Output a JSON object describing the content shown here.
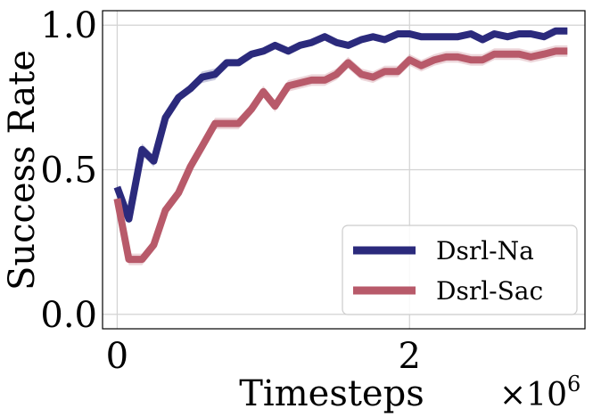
{
  "chart_data": {
    "type": "line",
    "xlabel": "Timesteps",
    "x_multiplier": "×10",
    "x_multiplier_exp": "6",
    "ylabel": "Success Rate",
    "xlim": [
      -0.1,
      3.2
    ],
    "ylim": [
      -0.05,
      1.05
    ],
    "x_ticks": [
      0,
      2
    ],
    "x_tick_labels": [
      "0",
      "2"
    ],
    "y_ticks": [
      0.0,
      0.5,
      1.0
    ],
    "y_tick_labels": [
      "0.0",
      "0.5",
      "1.0"
    ],
    "grid": true,
    "legend_position": "lower-right",
    "x": [
      0.0,
      0.08,
      0.17,
      0.25,
      0.33,
      0.42,
      0.5,
      0.58,
      0.67,
      0.75,
      0.83,
      0.92,
      1.0,
      1.08,
      1.17,
      1.25,
      1.33,
      1.42,
      1.5,
      1.58,
      1.67,
      1.75,
      1.83,
      1.92,
      2.0,
      2.08,
      2.17,
      2.25,
      2.33,
      2.42,
      2.5,
      2.58,
      2.67,
      2.75,
      2.83,
      2.92,
      3.0,
      3.08
    ],
    "series": [
      {
        "name": "Dsrl-Na",
        "color": "#2b2a7c",
        "values": [
          0.44,
          0.33,
          0.57,
          0.53,
          0.68,
          0.75,
          0.78,
          0.82,
          0.83,
          0.87,
          0.87,
          0.9,
          0.91,
          0.93,
          0.91,
          0.93,
          0.94,
          0.96,
          0.94,
          0.93,
          0.95,
          0.96,
          0.95,
          0.97,
          0.97,
          0.96,
          0.96,
          0.96,
          0.96,
          0.97,
          0.95,
          0.97,
          0.96,
          0.97,
          0.97,
          0.96,
          0.98,
          0.98
        ],
        "band": [
          0.01,
          0.01,
          0.02,
          0.02,
          0.02,
          0.01,
          0.01,
          0.02,
          0.02,
          0.01,
          0.01,
          0.01,
          0.01,
          0.01,
          0.01,
          0.01,
          0.01,
          0.01,
          0.01,
          0.01,
          0.01,
          0.01,
          0.01,
          0.01,
          0.01,
          0.01,
          0.01,
          0.01,
          0.01,
          0.01,
          0.01,
          0.01,
          0.01,
          0.01,
          0.01,
          0.01,
          0.01,
          0.01
        ]
      },
      {
        "name": "Dsrl-Sac",
        "color": "#b85a6a",
        "values": [
          0.4,
          0.19,
          0.19,
          0.24,
          0.36,
          0.42,
          0.51,
          0.58,
          0.66,
          0.66,
          0.66,
          0.71,
          0.77,
          0.72,
          0.79,
          0.8,
          0.81,
          0.81,
          0.83,
          0.87,
          0.83,
          0.82,
          0.84,
          0.84,
          0.88,
          0.86,
          0.88,
          0.89,
          0.89,
          0.88,
          0.88,
          0.9,
          0.9,
          0.9,
          0.89,
          0.9,
          0.91,
          0.91
        ],
        "band": [
          0.02,
          0.02,
          0.02,
          0.02,
          0.02,
          0.02,
          0.02,
          0.02,
          0.02,
          0.02,
          0.02,
          0.02,
          0.02,
          0.02,
          0.02,
          0.02,
          0.02,
          0.02,
          0.02,
          0.02,
          0.02,
          0.02,
          0.02,
          0.02,
          0.02,
          0.02,
          0.02,
          0.02,
          0.02,
          0.02,
          0.02,
          0.02,
          0.02,
          0.02,
          0.02,
          0.02,
          0.02,
          0.02
        ]
      }
    ]
  }
}
